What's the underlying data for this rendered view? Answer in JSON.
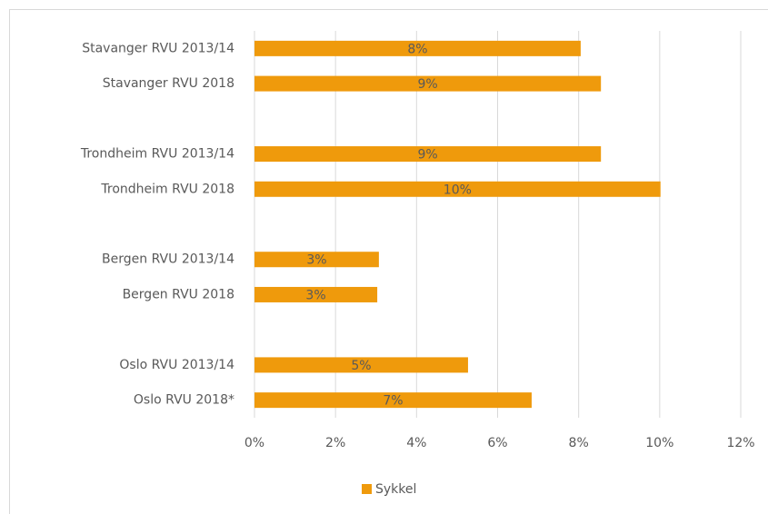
{
  "chart_data": {
    "type": "barh",
    "categories": [
      "Stavanger RVU 2013/14",
      "Stavanger RVU 2018",
      null,
      "Trondheim RVU 2013/14",
      "Trondheim RVU 2018",
      null,
      "Bergen RVU 2013/14",
      "Bergen RVU 2018",
      null,
      "Oslo  RVU 2013/14",
      "Oslo RVU 2018*"
    ],
    "series": [
      {
        "name": "Sykkel",
        "color": "#ef9a0c",
        "values": [
          8.05,
          8.55,
          null,
          8.55,
          10.02,
          null,
          3.07,
          3.03,
          null,
          5.27,
          6.84
        ],
        "value_labels": [
          "8%",
          "9%",
          null,
          "9%",
          "10%",
          null,
          "3%",
          "3%",
          null,
          "5%",
          "7%"
        ]
      }
    ],
    "xlim": [
      0,
      12
    ],
    "xticks": [
      {
        "value": 0,
        "label": "0%"
      },
      {
        "value": 2,
        "label": "2%"
      },
      {
        "value": 4,
        "label": "4%"
      },
      {
        "value": 6,
        "label": "6%"
      },
      {
        "value": 8,
        "label": "8%"
      },
      {
        "value": 10,
        "label": "10%"
      },
      {
        "value": 12,
        "label": "12%"
      }
    ],
    "grid": true,
    "legend": "bottom"
  }
}
